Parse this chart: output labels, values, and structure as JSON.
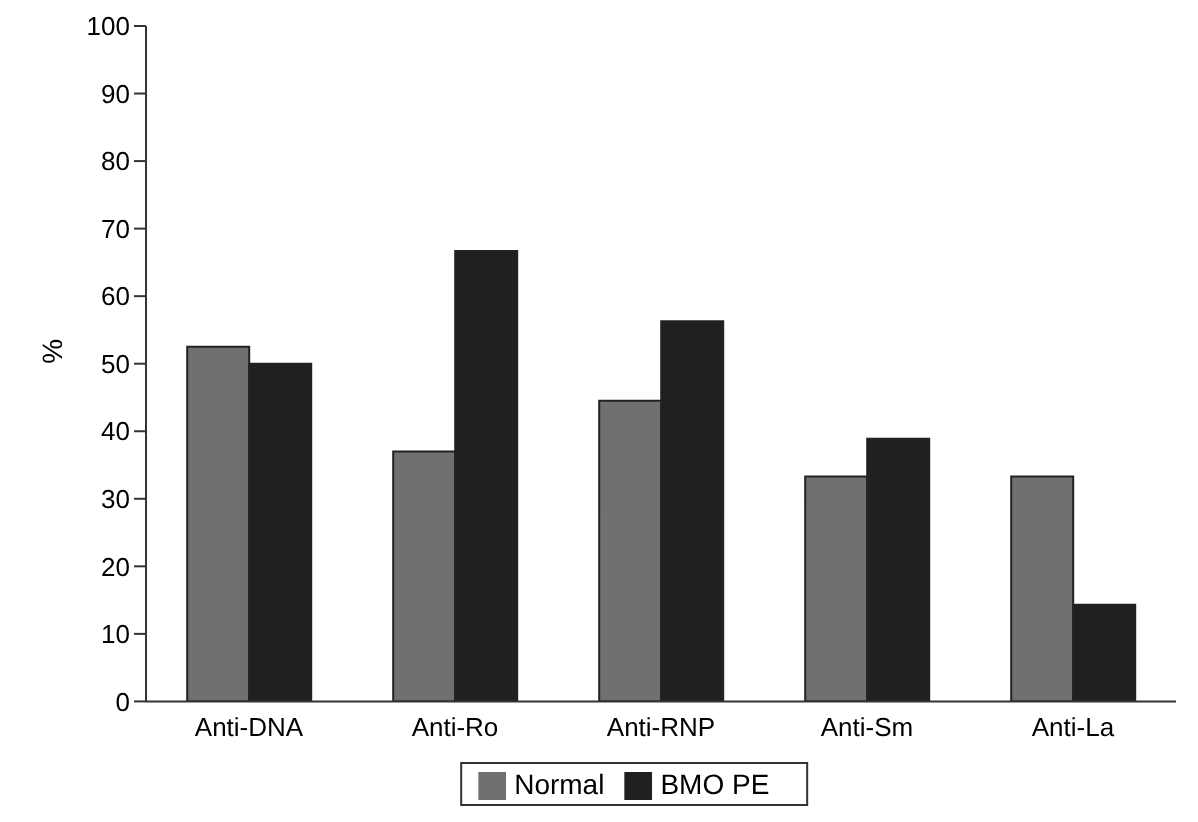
{
  "chart_data": {
    "type": "bar",
    "ylabel": "%",
    "categories": [
      "Anti-DNA",
      "Anti-Ro",
      "Anti-RNP",
      "Anti-Sm",
      "Anti-La"
    ],
    "series": [
      {
        "name": "Normal",
        "color": "#707070",
        "values": [
          52.5,
          37,
          44.5,
          33.3,
          33.3
        ]
      },
      {
        "name": "BMO PE",
        "color": "#202020",
        "values": [
          50,
          66.7,
          56.3,
          38.9,
          14.3
        ]
      }
    ],
    "ylim": [
      0,
      100
    ],
    "yticks": [
      0,
      10,
      20,
      30,
      40,
      50,
      60,
      70,
      80,
      90,
      100
    ],
    "grid": false,
    "legend": "bottom"
  }
}
